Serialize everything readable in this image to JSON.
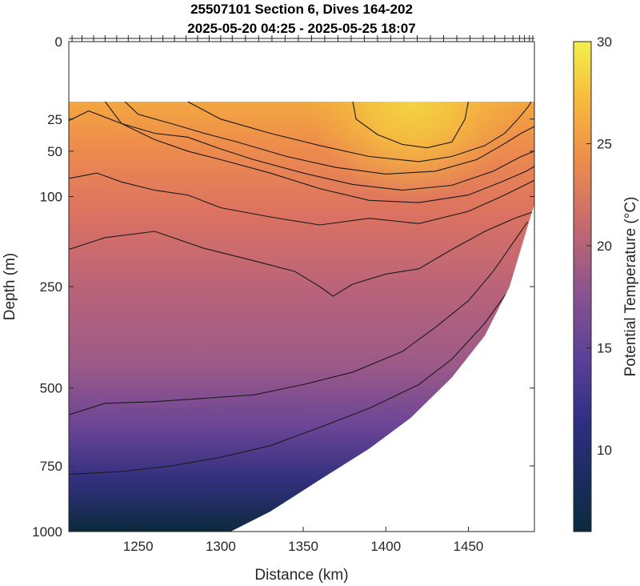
{
  "chart_data": {
    "type": "heatmap",
    "title": [
      "25507101 Section 6, Dives 164-202",
      "2025-05-20 04:25 - 2025-05-25 18:07"
    ],
    "xlabel": "Distance (km)",
    "ylabel": "Depth (m)",
    "colorbar_label": "Potential Temperature (°C)",
    "x_range": [
      1208,
      1490
    ],
    "y_range": [
      0,
      1000
    ],
    "y_scale": "sqrt",
    "x_ticks": [
      "1250",
      "1300",
      "1350",
      "1400",
      "1450"
    ],
    "x_tick_values": [
      1250,
      1300,
      1350,
      1400,
      1450
    ],
    "y_ticks": [
      "0",
      "25",
      "50",
      "100",
      "250",
      "500",
      "750",
      "1000"
    ],
    "y_tick_values": [
      0,
      25,
      50,
      100,
      250,
      500,
      750,
      1000
    ],
    "colorbar_range": [
      6,
      30
    ],
    "colorbar_ticks": [
      "10",
      "15",
      "20",
      "25",
      "30"
    ],
    "colorbar_tick_values": [
      10,
      15,
      20,
      25,
      30
    ],
    "colors": [
      "#0c2a3e",
      "#2c2f82",
      "#5b3f9a",
      "#8f558f",
      "#c56870",
      "#ec8a4e",
      "#f8b93c",
      "#f3f04d"
    ],
    "dive_positions_km": [
      1210,
      1216,
      1223,
      1230,
      1237,
      1244,
      1251,
      1258,
      1265,
      1272,
      1279,
      1286,
      1293,
      1300,
      1307,
      1315,
      1323,
      1331,
      1339,
      1347,
      1355,
      1363,
      1371,
      1379,
      1387,
      1395,
      1403,
      1411,
      1419,
      1427,
      1435,
      1443,
      1451,
      1459,
      1466,
      1472,
      1477,
      1481,
      1484,
      1487,
      1489
    ],
    "surface_data_top_m": 15,
    "data_bottom_profile": {
      "x": [
        1208,
        1250,
        1306,
        1330,
        1360,
        1390,
        1415,
        1440,
        1460,
        1475,
        1485,
        1490
      ],
      "depth": [
        1000,
        1000,
        1000,
        920,
        800,
        690,
        590,
        470,
        360,
        250,
        150,
        110
      ]
    },
    "isotherms": [
      {
        "temperature": 28,
        "x": [
          1380,
          1382,
          1395,
          1410,
          1425,
          1440,
          1448,
          1450
        ],
        "depth": [
          15,
          25,
          36,
          44,
          47,
          42,
          25,
          15
        ]
      },
      {
        "temperature": 26,
        "x": [
          1280,
          1300,
          1330,
          1360,
          1390,
          1420,
          1440,
          1460,
          1472,
          1480,
          1486,
          1488
        ],
        "depth": [
          15,
          25,
          35,
          45,
          55,
          60,
          55,
          45,
          35,
          25,
          18,
          15
        ]
      },
      {
        "temperature": 25,
        "x": [
          1242,
          1250,
          1270,
          1290,
          1310,
          1340,
          1370,
          1400,
          1430,
          1455,
          1470,
          1482,
          1490
        ],
        "depth": [
          15,
          22,
          28,
          35,
          42,
          55,
          66,
          73,
          70,
          58,
          45,
          35,
          30
        ]
      },
      {
        "temperature": 24,
        "x": [
          1230,
          1240,
          1260,
          1280,
          1300,
          1320,
          1350,
          1380,
          1410,
          1440,
          1465,
          1482,
          1490
        ],
        "depth": [
          15,
          28,
          35,
          38,
          48,
          58,
          72,
          85,
          92,
          86,
          70,
          55,
          50
        ]
      },
      {
        "temperature": 23,
        "x": [
          1208,
          1220,
          1240,
          1260,
          1280,
          1300,
          1330,
          1360,
          1390,
          1420,
          1450,
          1470,
          1485,
          1490
        ],
        "depth": [
          26,
          20,
          28,
          40,
          50,
          58,
          72,
          90,
          105,
          108,
          98,
          82,
          70,
          65
        ]
      },
      {
        "temperature": 22,
        "x": [
          1208,
          1225,
          1240,
          1260,
          1280,
          1300,
          1330,
          1360,
          1390,
          1420,
          1450,
          1470,
          1485,
          1490
        ],
        "depth": [
          78,
          72,
          82,
          92,
          98,
          115,
          128,
          140,
          130,
          138,
          120,
          100,
          85,
          80
        ]
      },
      {
        "temperature": 20,
        "x": [
          1208,
          1230,
          1260,
          1290,
          1320,
          1345,
          1360,
          1368,
          1380,
          1400,
          1420,
          1440,
          1460,
          1478,
          1490
        ],
        "depth": [
          180,
          160,
          150,
          178,
          200,
          220,
          250,
          270,
          245,
          225,
          215,
          180,
          150,
          130,
          120
        ]
      },
      {
        "temperature": 16,
        "x": [
          1208,
          1230,
          1260,
          1290,
          1320,
          1350,
          1380,
          1410,
          1430,
          1450,
          1465,
          1478,
          1486
        ],
        "depth": [
          580,
          545,
          540,
          530,
          520,
          490,
          455,
          400,
          340,
          280,
          220,
          165,
          135
        ]
      },
      {
        "temperature": 12,
        "x": [
          1208,
          1240,
          1270,
          1300,
          1330,
          1360,
          1390,
          1420,
          1440,
          1460,
          1476,
          1486
        ],
        "depth": [
          780,
          770,
          750,
          720,
          680,
          620,
          560,
          490,
          420,
          330,
          250,
          185
        ]
      }
    ]
  }
}
